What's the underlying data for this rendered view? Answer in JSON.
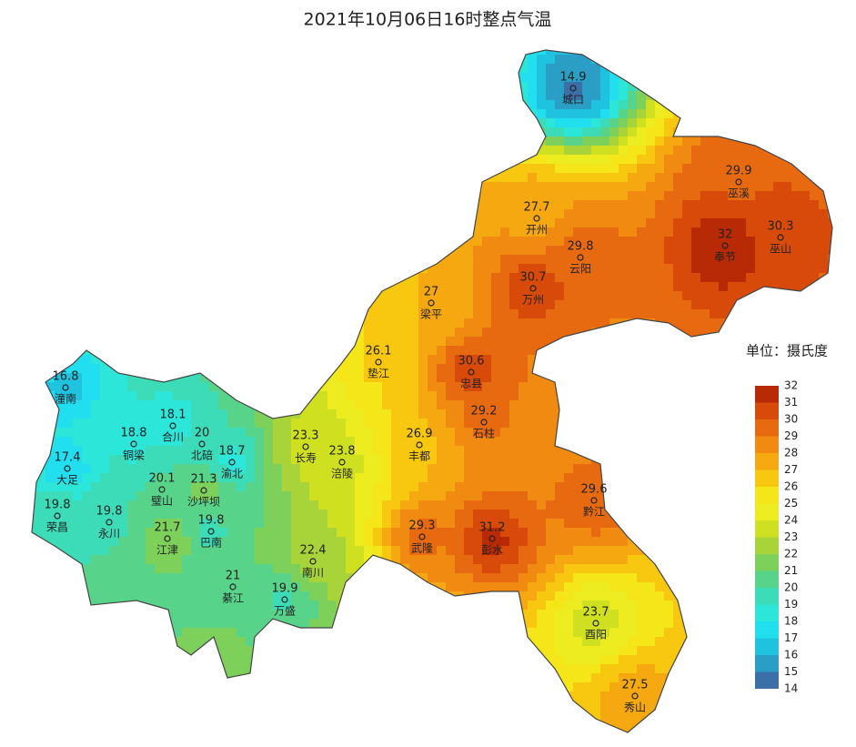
{
  "title": "2021年10月06日16时整点气温",
  "legend": {
    "title": "单位：摄氏度",
    "ticks": [
      14,
      15,
      16,
      17,
      18,
      19,
      20,
      21,
      22,
      23,
      24,
      25,
      26,
      27,
      28,
      29,
      30,
      31,
      32
    ],
    "colors": [
      "#3a6fa8",
      "#2a9ec4",
      "#1fc3e0",
      "#22dff0",
      "#2de6da",
      "#3cdcb8",
      "#58d48a",
      "#7dd05a",
      "#a8d43a",
      "#cfe020",
      "#ecec20",
      "#f5e61a",
      "#f8c810",
      "#f5a810",
      "#f08a10",
      "#e86a10",
      "#d84a0a",
      "#b82a05"
    ]
  },
  "stations": [
    {
      "name": "城口",
      "value": 14.9
    },
    {
      "name": "巫溪",
      "value": 29.9
    },
    {
      "name": "开州",
      "value": 27.7
    },
    {
      "name": "巫山",
      "value": 30.3
    },
    {
      "name": "奉节",
      "value": 32
    },
    {
      "name": "云阳",
      "value": 29.8
    },
    {
      "name": "万州",
      "value": 30.7
    },
    {
      "name": "梁平",
      "value": 27
    },
    {
      "name": "垫江",
      "value": 26.1
    },
    {
      "name": "忠县",
      "value": 30.6
    },
    {
      "name": "潼南",
      "value": 16.8
    },
    {
      "name": "合川",
      "value": 18.1
    },
    {
      "name": "石柱",
      "value": 29.2
    },
    {
      "name": "铜梁",
      "value": 18.8
    },
    {
      "name": "北碚",
      "value": 20
    },
    {
      "name": "丰都",
      "value": 26.9
    },
    {
      "name": "长寿",
      "value": 23.3
    },
    {
      "name": "渝北",
      "value": 18.7
    },
    {
      "name": "涪陵",
      "value": 23.8
    },
    {
      "name": "大足",
      "value": 17.4
    },
    {
      "name": "璧山",
      "value": 20.1
    },
    {
      "name": "沙坪坝",
      "value": 21.3
    },
    {
      "name": "黔江",
      "value": 29.6
    },
    {
      "name": "荣昌",
      "value": 19.8
    },
    {
      "name": "永川",
      "value": 19.8
    },
    {
      "name": "江津",
      "value": 21.7
    },
    {
      "name": "巴南",
      "value": 19.8
    },
    {
      "name": "武隆",
      "value": 29.3
    },
    {
      "name": "彭水",
      "value": 31.2
    },
    {
      "name": "南川",
      "value": 22.4
    },
    {
      "name": "綦江",
      "value": 21
    },
    {
      "name": "万盛",
      "value": 19.9
    },
    {
      "name": "酉阳",
      "value": 23.7
    },
    {
      "name": "秀山",
      "value": 27.5
    }
  ]
}
